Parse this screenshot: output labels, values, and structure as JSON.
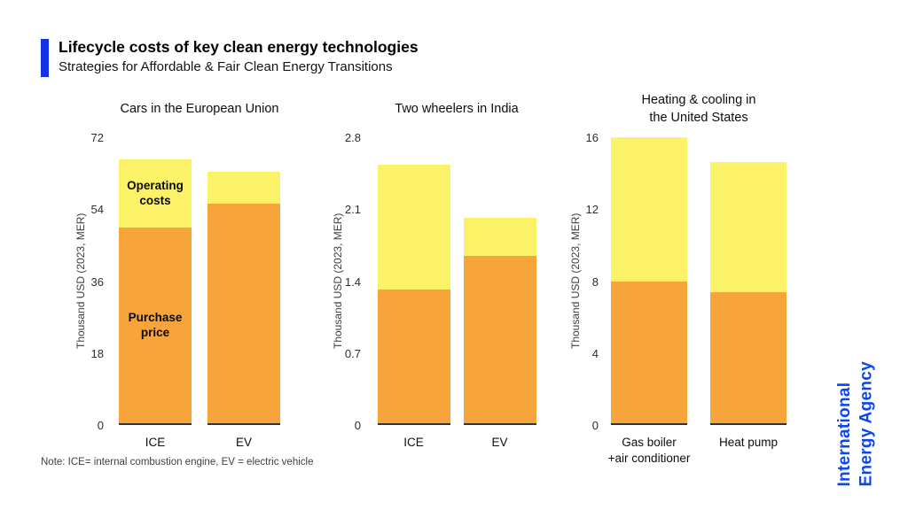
{
  "header": {
    "title": "Lifecycle costs of key clean energy technologies",
    "subtitle": "Strategies for Affordable & Fair Clean Energy Transitions"
  },
  "footer": {
    "note": "Note: ICE= internal combustion engine, EV = electric vehicle"
  },
  "brand": {
    "vertical_text": "International\nEnergy Agency"
  },
  "colors": {
    "accent_blue": "#1434e4",
    "brand_blue": "#0b46f0",
    "purchase_orange": "#F7A43A",
    "operating_yellow": "#FBF267"
  },
  "chart_data": [
    {
      "type": "bar",
      "stacked": true,
      "title": "Cars in the European Union",
      "ylabel": "Thousand USD (2023, MER)",
      "ylim": [
        0,
        72
      ],
      "yticks": [
        "0",
        "18",
        "36",
        "54",
        "72"
      ],
      "categories": [
        "ICE",
        "EV"
      ],
      "series": [
        {
          "name": "Purchase price",
          "values": [
            49,
            55
          ]
        },
        {
          "name": "Operating costs",
          "values": [
            17,
            8
          ]
        }
      ],
      "segment_labels": {
        "operating": "Operating\ncosts",
        "purchase": "Purchase\nprice"
      }
    },
    {
      "type": "bar",
      "stacked": true,
      "title": "Two wheelers in India",
      "ylabel": "Thousand USD (2023, MER)",
      "ylim": [
        0,
        2.8
      ],
      "yticks": [
        "0",
        "0.7",
        "1.4",
        "2.1",
        "2.8"
      ],
      "categories": [
        "ICE",
        "EV"
      ],
      "series": [
        {
          "name": "Purchase price",
          "values": [
            1.3,
            1.63
          ]
        },
        {
          "name": "Operating costs",
          "values": [
            1.22,
            0.37
          ]
        }
      ]
    },
    {
      "type": "bar",
      "stacked": true,
      "title": "Heating & cooling in\nthe United States",
      "ylabel": "Thousand USD (2023, MER)",
      "ylim": [
        0,
        16
      ],
      "yticks": [
        "0",
        "4",
        "8",
        "12",
        "16"
      ],
      "categories": [
        "Gas boiler\n+air conditioner",
        "Heat pump"
      ],
      "series": [
        {
          "name": "Purchase price",
          "values": [
            7.9,
            7.3
          ]
        },
        {
          "name": "Operating costs",
          "values": [
            8.0,
            7.2
          ]
        }
      ]
    }
  ]
}
